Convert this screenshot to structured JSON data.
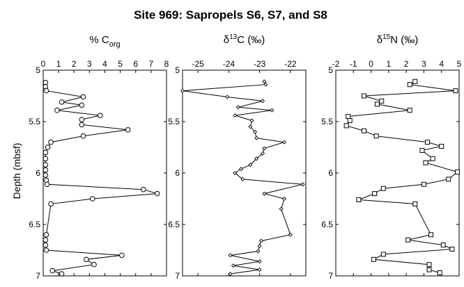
{
  "chart_data": {
    "title": "Site 969:  Sapropels S6, S7, and S8",
    "ylabel": "Depth (mbsf)",
    "ylim": [
      5,
      7
    ],
    "yticks": [
      5,
      5.5,
      6,
      6.5,
      7
    ],
    "ytick_labels": [
      "5",
      "5.5",
      "6",
      "6.5",
      "7"
    ],
    "y_inverted": true,
    "panels": [
      {
        "type": "line",
        "xlabel_main": "% C",
        "xlabel_sub": "org",
        "xlabel_suffix": "",
        "xlim": [
          0,
          8
        ],
        "xticks": [
          0,
          1,
          2,
          3,
          4,
          5,
          6,
          7,
          8
        ],
        "xtick_labels": [
          "0",
          "1",
          "2",
          "3",
          "4",
          "5",
          "6",
          "7",
          "8"
        ],
        "marker": "circle",
        "points": [
          {
            "x": 0.15,
            "y": 5.12
          },
          {
            "x": 0.15,
            "y": 5.16
          },
          {
            "x": 0.2,
            "y": 5.2
          },
          {
            "x": 2.6,
            "y": 5.26
          },
          {
            "x": 1.2,
            "y": 5.31
          },
          {
            "x": 2.5,
            "y": 5.34
          },
          {
            "x": 0.9,
            "y": 5.39
          },
          {
            "x": 3.7,
            "y": 5.44
          },
          {
            "x": 2.5,
            "y": 5.48
          },
          {
            "x": 2.5,
            "y": 5.53
          },
          {
            "x": 5.5,
            "y": 5.58
          },
          {
            "x": 2.6,
            "y": 5.64
          },
          {
            "x": 0.5,
            "y": 5.7
          },
          {
            "x": 0.3,
            "y": 5.75
          },
          {
            "x": 0.15,
            "y": 5.8
          },
          {
            "x": 0.15,
            "y": 5.86
          },
          {
            "x": 0.15,
            "y": 5.92
          },
          {
            "x": 0.15,
            "y": 5.97
          },
          {
            "x": 0.15,
            "y": 6.02
          },
          {
            "x": 0.2,
            "y": 6.07
          },
          {
            "x": 0.25,
            "y": 6.11
          },
          {
            "x": 6.5,
            "y": 6.16
          },
          {
            "x": 7.4,
            "y": 6.2
          },
          {
            "x": 3.2,
            "y": 6.25
          },
          {
            "x": 0.5,
            "y": 6.3
          },
          {
            "x": 0.2,
            "y": 6.6
          },
          {
            "x": 0.15,
            "y": 6.65
          },
          {
            "x": 0.15,
            "y": 6.7
          },
          {
            "x": 0.2,
            "y": 6.75
          },
          {
            "x": 5.1,
            "y": 6.8
          },
          {
            "x": 2.8,
            "y": 6.84
          },
          {
            "x": 3.3,
            "y": 6.89
          },
          {
            "x": 0.6,
            "y": 6.95
          },
          {
            "x": 1.2,
            "y": 6.98
          }
        ]
      },
      {
        "type": "line",
        "xlabel_main": "δ",
        "xlabel_sup": "13",
        "xlabel_suffix": "C (‰)",
        "xlim": [
          -25.5,
          -21.5
        ],
        "xticks": [
          -25,
          -24,
          -23,
          -22
        ],
        "xtick_labels": [
          "-25",
          "-24",
          "-23",
          "-22"
        ],
        "marker": "diamond",
        "points": [
          {
            "x": -22.85,
            "y": 5.11
          },
          {
            "x": -22.8,
            "y": 5.14
          },
          {
            "x": -25.5,
            "y": 5.2
          },
          {
            "x": -24.05,
            "y": 5.26
          },
          {
            "x": -22.9,
            "y": 5.3
          },
          {
            "x": -23.7,
            "y": 5.36
          },
          {
            "x": -22.6,
            "y": 5.39
          },
          {
            "x": -23.8,
            "y": 5.44
          },
          {
            "x": -23.25,
            "y": 5.49
          },
          {
            "x": -23.3,
            "y": 5.55
          },
          {
            "x": -23.15,
            "y": 5.6
          },
          {
            "x": -23.1,
            "y": 5.66
          },
          {
            "x": -22.2,
            "y": 5.7
          },
          {
            "x": -22.85,
            "y": 5.76
          },
          {
            "x": -22.9,
            "y": 5.81
          },
          {
            "x": -23.1,
            "y": 5.86
          },
          {
            "x": -23.3,
            "y": 5.92
          },
          {
            "x": -23.6,
            "y": 5.96
          },
          {
            "x": -23.8,
            "y": 6.0
          },
          {
            "x": -23.55,
            "y": 6.06
          },
          {
            "x": -21.6,
            "y": 6.11
          },
          {
            "x": -22.85,
            "y": 6.2
          },
          {
            "x": -22.2,
            "y": 6.25
          },
          {
            "x": -22.3,
            "y": 6.35
          },
          {
            "x": -22.0,
            "y": 6.6
          },
          {
            "x": -22.95,
            "y": 6.66
          },
          {
            "x": -23.0,
            "y": 6.71
          },
          {
            "x": -23.05,
            "y": 6.76
          },
          {
            "x": -23.95,
            "y": 6.8
          },
          {
            "x": -23.0,
            "y": 6.86
          },
          {
            "x": -23.85,
            "y": 6.9
          },
          {
            "x": -23.0,
            "y": 6.94
          },
          {
            "x": -23.95,
            "y": 6.98
          }
        ]
      },
      {
        "type": "line",
        "xlabel_main": "δ",
        "xlabel_sup": "15",
        "xlabel_suffix": "N (‰)",
        "xlim": [
          -2,
          5
        ],
        "xticks": [
          -2,
          -1,
          0,
          1,
          2,
          3,
          4,
          5
        ],
        "xtick_labels": [
          "-2",
          "-1",
          "0",
          "1",
          "2",
          "3",
          "4",
          "5"
        ],
        "marker": "square",
        "points": [
          {
            "x": 2.5,
            "y": 5.11
          },
          {
            "x": 2.2,
            "y": 5.14
          },
          {
            "x": 4.8,
            "y": 5.2
          },
          {
            "x": -0.4,
            "y": 5.25
          },
          {
            "x": 0.6,
            "y": 5.3
          },
          {
            "x": 0.35,
            "y": 5.33
          },
          {
            "x": 2.2,
            "y": 5.39
          },
          {
            "x": -1.3,
            "y": 5.45
          },
          {
            "x": -1.2,
            "y": 5.49
          },
          {
            "x": -1.4,
            "y": 5.54
          },
          {
            "x": -0.4,
            "y": 5.59
          },
          {
            "x": 0.3,
            "y": 5.64
          },
          {
            "x": 3.2,
            "y": 5.7
          },
          {
            "x": 4.0,
            "y": 5.74
          },
          {
            "x": 2.9,
            "y": 5.78
          },
          {
            "x": 3.5,
            "y": 5.86
          },
          {
            "x": 3.1,
            "y": 5.9
          },
          {
            "x": 4.9,
            "y": 5.99
          },
          {
            "x": 4.4,
            "y": 6.06
          },
          {
            "x": 3.0,
            "y": 6.11
          },
          {
            "x": 0.7,
            "y": 6.15
          },
          {
            "x": 0.2,
            "y": 6.2
          },
          {
            "x": -0.7,
            "y": 6.26
          },
          {
            "x": 2.5,
            "y": 6.3
          },
          {
            "x": 3.4,
            "y": 6.6
          },
          {
            "x": 2.1,
            "y": 6.65
          },
          {
            "x": 4.1,
            "y": 6.7
          },
          {
            "x": 4.6,
            "y": 6.74
          },
          {
            "x": 0.7,
            "y": 6.79
          },
          {
            "x": 0.15,
            "y": 6.84
          },
          {
            "x": 3.3,
            "y": 6.89
          },
          {
            "x": 3.3,
            "y": 6.94
          },
          {
            "x": 3.9,
            "y": 6.97
          }
        ]
      }
    ]
  }
}
